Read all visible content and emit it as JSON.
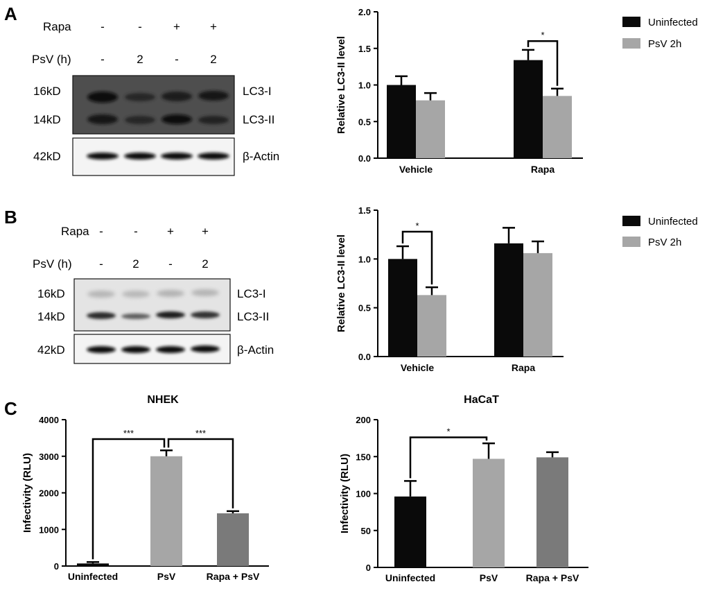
{
  "panels": {
    "A": {
      "letter": "A",
      "blot": {
        "rapa_label": "Rapa",
        "rapa_values": [
          "-",
          "-",
          "+",
          "+"
        ],
        "psv_label": "PsV (h)",
        "psv_values": [
          "-",
          "2",
          "-",
          "2"
        ],
        "mw_16": "16kD",
        "mw_14": "14kD",
        "mw_42": "42kD",
        "band_lc3i": "LC3-I",
        "band_lc3ii": "LC3-II",
        "band_actin": "β-Actin"
      },
      "chart_legend": [
        "Uninfected",
        "PsV 2h"
      ]
    },
    "B": {
      "letter": "B",
      "blot": {
        "rapa_label": "Rapa",
        "rapa_values": [
          "-",
          "-",
          "+",
          "+"
        ],
        "psv_label": "PsV (h)",
        "psv_values": [
          "-",
          "2",
          "-",
          "2"
        ],
        "mw_16": "16kD",
        "mw_14": "14kD",
        "mw_42": "42kD",
        "band_lc3i": "LC3-I",
        "band_lc3ii": "LC3-II",
        "band_actin": "β-Actin"
      },
      "chart_legend": [
        "Uninfected",
        "PsV 2h"
      ]
    },
    "C": {
      "letter": "C"
    }
  },
  "colors": {
    "uninfected": "#0a0a0a",
    "psv": "#a6a6a6",
    "rapa_psv": "#7a7a7a"
  },
  "chart_data": [
    {
      "id": "A",
      "type": "bar",
      "categories": [
        "Vehicle",
        "Rapa"
      ],
      "series": [
        {
          "name": "Uninfected",
          "values": [
            1.0,
            1.34
          ],
          "errors": [
            0.12,
            0.14
          ]
        },
        {
          "name": "PsV 2h",
          "values": [
            0.79,
            0.85
          ],
          "errors": [
            0.1,
            0.1
          ]
        }
      ],
      "title": "",
      "xlabel": "",
      "ylabel": "Relative LC3-II level",
      "ylim": [
        0,
        2.0
      ],
      "yticks": [
        "0.0",
        "0.5",
        "1.0",
        "1.5",
        "2.0"
      ],
      "significance": [
        {
          "label": "*"
        }
      ],
      "legend": "top-right",
      "grid": false
    },
    {
      "id": "B",
      "type": "bar",
      "categories": [
        "Vehicle",
        "Rapa"
      ],
      "series": [
        {
          "name": "Uninfected",
          "values": [
            1.0,
            1.16
          ],
          "errors": [
            0.13,
            0.16
          ]
        },
        {
          "name": "PsV 2h",
          "values": [
            0.63,
            1.06
          ],
          "errors": [
            0.08,
            0.12
          ]
        }
      ],
      "title": "",
      "xlabel": "",
      "ylabel": "Relative LC3-II level",
      "ylim": [
        0,
        1.5
      ],
      "yticks": [
        "0.0",
        "0.5",
        "1.0",
        "1.5"
      ],
      "significance": [
        {
          "label": "*"
        }
      ],
      "legend": "top-right",
      "grid": false
    },
    {
      "id": "C-NHEK",
      "type": "bar",
      "title": "NHEK",
      "categories": [
        "Uninfected",
        "PsV",
        "Rapa + PsV"
      ],
      "values": [
        70,
        3000,
        1440
      ],
      "errors": [
        40,
        160,
        60
      ],
      "ylabel": "Infectivity (RLU)",
      "ylim": [
        0,
        4000
      ],
      "yticks": [
        "0",
        "1000",
        "2000",
        "3000",
        "4000"
      ],
      "significance": [
        {
          "label": "***"
        },
        {
          "label": "***"
        }
      ],
      "grid": false
    },
    {
      "id": "C-HaCaT",
      "type": "bar",
      "title": "HaCaT",
      "categories": [
        "Uninfected",
        "PsV",
        "Rapa + PsV"
      ],
      "values": [
        96,
        147,
        149
      ],
      "errors": [
        21,
        21,
        7
      ],
      "ylabel": "Infectivity (RLU)",
      "ylim": [
        0,
        200
      ],
      "yticks": [
        "0",
        "50",
        "100",
        "150",
        "200"
      ],
      "significance": [
        {
          "label": "*"
        }
      ],
      "grid": false
    }
  ]
}
